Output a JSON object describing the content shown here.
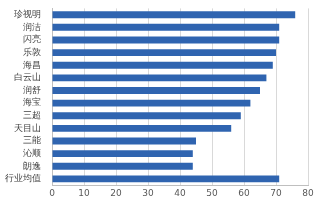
{
  "chart_data": {
    "type": "bar",
    "orientation": "horizontal",
    "categories": [
      "珍视明",
      "润洁",
      "闪亮",
      "乐敦",
      "海昌",
      "白云山",
      "润舒",
      "海宝",
      "三超",
      "天目山",
      "三能",
      "沁顺",
      "朗逸",
      "行业均值"
    ],
    "values": [
      76,
      71,
      71,
      70,
      69,
      67,
      65,
      62,
      59,
      56,
      45,
      44,
      44,
      71
    ],
    "color": "#2f64b0",
    "xlim": [
      0,
      80
    ],
    "xticks": [
      0,
      10,
      20,
      30,
      40,
      50,
      60,
      70,
      80
    ],
    "grid": true
  }
}
